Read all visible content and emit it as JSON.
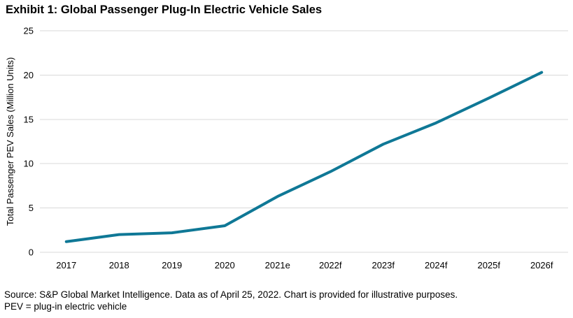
{
  "title": "Exhibit 1: Global Passenger Plug-In Electric Vehicle Sales",
  "chart_data": {
    "type": "line",
    "categories": [
      "2017",
      "2018",
      "2019",
      "2020",
      "2021e",
      "2022f",
      "2023f",
      "2024f",
      "2025f",
      "2026f"
    ],
    "values": [
      1.2,
      2.0,
      2.2,
      3.0,
      6.3,
      9.1,
      12.2,
      14.6,
      17.4,
      20.3
    ],
    "title": "Exhibit 1: Global Passenger Plug-In Electric Vehicle Sales",
    "xlabel": "",
    "ylabel": "Total Passenger PEV Sales (Million Units)",
    "ylim": [
      0,
      25
    ],
    "yticks": [
      0,
      5,
      10,
      15,
      20,
      25
    ],
    "grid": "horizontal-only",
    "legend": "none",
    "line_color": "#0f7896",
    "grid_color": "#d9d9d9"
  },
  "footer": {
    "source": "Source: S&P Global Market Intelligence. Data as of April 25, 2022. Chart is provided for illustrative purposes.",
    "note": "PEV = plug-in electric vehicle"
  }
}
